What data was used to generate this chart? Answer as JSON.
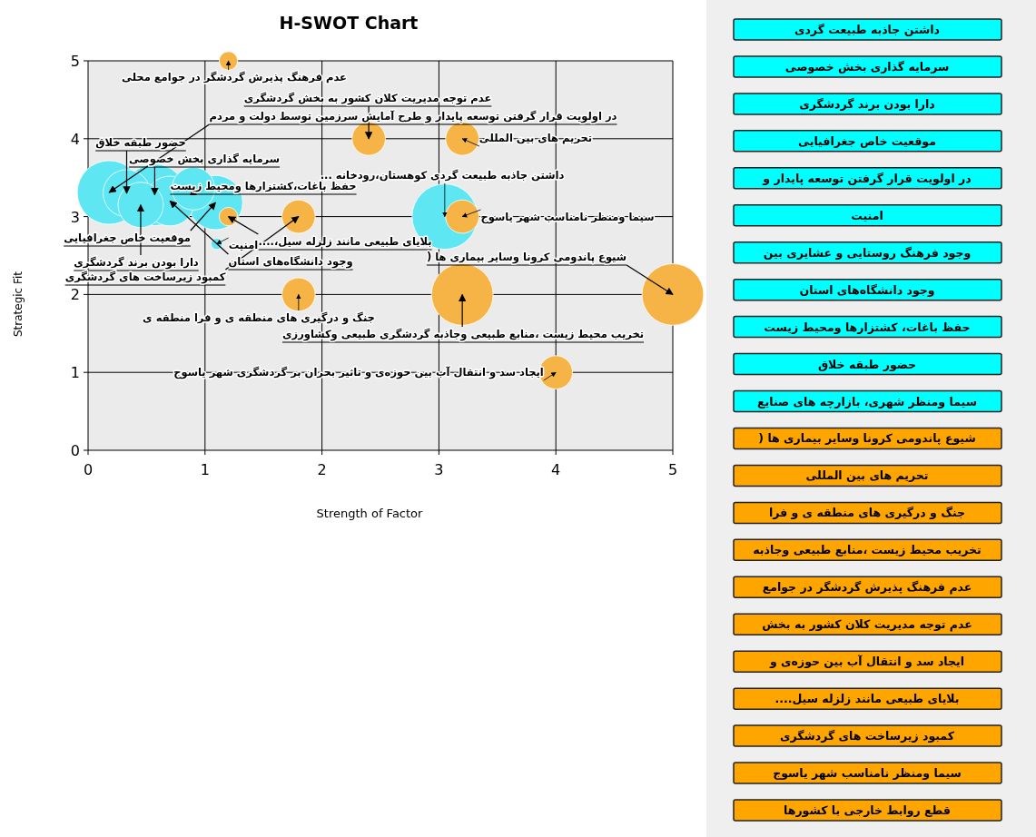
{
  "chart_data": [
    {
      "type": "bubble",
      "title": "H-SWOT Chart",
      "xlabel": "Strength of Factor",
      "ylabel": "Strategic Fit",
      "xlim": [
        0,
        5
      ],
      "ylim": [
        0,
        5
      ],
      "xticks": [
        0,
        1,
        2,
        3,
        4,
        5
      ],
      "yticks": [
        0,
        1,
        2,
        3,
        4,
        5
      ],
      "grid": true,
      "series": [
        {
          "color": "#5fe6f3",
          "x": [
            3.05,
            0.18,
            0.33,
            0.57,
            0.45,
            1.09,
            0.7,
            0.9,
            1.1
          ],
          "values": [
            3,
            3.31,
            3.3,
            3.28,
            3.15,
            3.18,
            3.2,
            3.36,
            2.65
          ],
          "sizes": [
            1,
            0.95,
            0.52,
            0.89,
            0.48,
            0.69,
            0.58,
            0.43,
            0.03
          ]
        },
        {
          "color": "#f6b446",
          "x": [
            1.2,
            2.4,
            3.2,
            1.2,
            1.8,
            3.2,
            1.8,
            3.2,
            5,
            4
          ],
          "values": [
            5,
            4,
            4,
            3,
            3,
            3,
            2,
            2,
            2,
            1
          ],
          "sizes": [
            0.08,
            0.26,
            0.26,
            0.08,
            0.26,
            0.26,
            0.26,
            0.89,
            0.89,
            0.26
          ]
        }
      ],
      "annotations": [
        {
          "text": "داشتن جاذبه طبیعت گردی کوهستان،رودخانه ...",
          "x": 3.05,
          "y": 3
        },
        {
          "text": "در اولویت قرار گرفتن توسعه پایدار و طرح آمایش سرزمین توسط دولت و مردم",
          "x": 0.18,
          "y": 3.31
        },
        {
          "text": "حضور طبقه خلاق",
          "x": 0.33,
          "y": 3.3
        },
        {
          "text": "سرمایه گذاری بخش خصوصی",
          "x": 0.57,
          "y": 3.28
        },
        {
          "text": "دارا بودن برند گردشگری",
          "x": 0.45,
          "y": 3.15
        },
        {
          "text": "موقعیت خاص جغرافیایی",
          "x": 1.09,
          "y": 3.18
        },
        {
          "text": "وجود دانشگاه‌های استان",
          "x": 0.7,
          "y": 3.2
        },
        {
          "text": "حفظ باغات،کشتزارها ومحیط زیست",
          "x": 0.9,
          "y": 3.36
        },
        {
          "text": "امنیت",
          "x": 1.1,
          "y": 2.65
        },
        {
          "text": "عدم فرهنگ پذیرش گردشگر در جوامع محلی",
          "x": 1.2,
          "y": 5
        },
        {
          "text": "عدم توجه مدیریت کلان کشور به بخش گردشگری",
          "x": 2.4,
          "y": 4
        },
        {
          "text": "تحریم های بین المللی",
          "x": 3.2,
          "y": 4
        },
        {
          "text": "بلایای طبیعی مانند زلزله سیل،....",
          "x": 1.2,
          "y": 3
        },
        {
          "text": "کمبود زیرساخت های گردشگری",
          "x": 1.8,
          "y": 3
        },
        {
          "text": "سیما ومنظر نامناسب شهر یاسوج",
          "x": 3.2,
          "y": 3
        },
        {
          "text": "جنگ و درگیری های منطقه ی و فرا منطقه ی",
          "x": 1.8,
          "y": 2
        },
        {
          "text": "تخریب محیط زیست ،منابع طبیعی وجاذبه گردشگری طبیعی وکشاورزی",
          "x": 3.2,
          "y": 2
        },
        {
          "text": "شیوع پاندومی کرونا وسایر بیماری ها (",
          "x": 5,
          "y": 2
        },
        {
          "text": "ایجاد سد و انتقال آب بین حوزه‌ی و تاثیر بحران بر گردشگری شهر یاسوج",
          "x": 4,
          "y": 1
        }
      ]
    },
    {
      "type": "other",
      "categories": [
        "داشتن جاذبه طبیعت گردی",
        "سرمایه گذاری بخش خصوصی",
        "دارا بودن برند گردشگری",
        "موقعیت خاص جغرافیایی",
        "در اولویت قرار گرفتن توسعه پایدار و",
        "امنیت",
        "وجود فرهنگ روستایی و عشایری بین",
        "وجود دانشگاه‌های استان",
        "حفظ باغات، کشتزارها ومحیط زیست",
        "حضور طبقه خلاق",
        "سیما ومنظر شهری، بازارچه های صنایع",
        "شیوع پاندومی کرونا وسایر بیماری ها (",
        "تحریم های بین المللی",
        "جنگ و درگیری های منطقه ی و فرا",
        "تخریب محیط زیست ،منابع طبیعی وجاذبه",
        "عدم فرهنگ پذیرش گردشگر در جوامع",
        "عدم توجه مدیریت کلان کشور به بخش",
        "ایجاد سد و انتقال آب بین حوزه‌ی و",
        "بلایای طبیعی مانند زلزله سیل....",
        "کمبود زیرساخت های گردشگری",
        "سیما ومنظر نامناسب شهر یاسوج",
        "قطع روابط خارجی با کشورها"
      ],
      "colors": [
        "#00ffff",
        "#00ffff",
        "#00ffff",
        "#00ffff",
        "#00ffff",
        "#00ffff",
        "#00ffff",
        "#00ffff",
        "#00ffff",
        "#00ffff",
        "#00ffff",
        "#ffa500",
        "#ffa500",
        "#ffa500",
        "#ffa500",
        "#ffa500",
        "#ffa500",
        "#ffa500",
        "#ffa500",
        "#ffa500",
        "#ffa500",
        "#ffa500"
      ]
    }
  ]
}
